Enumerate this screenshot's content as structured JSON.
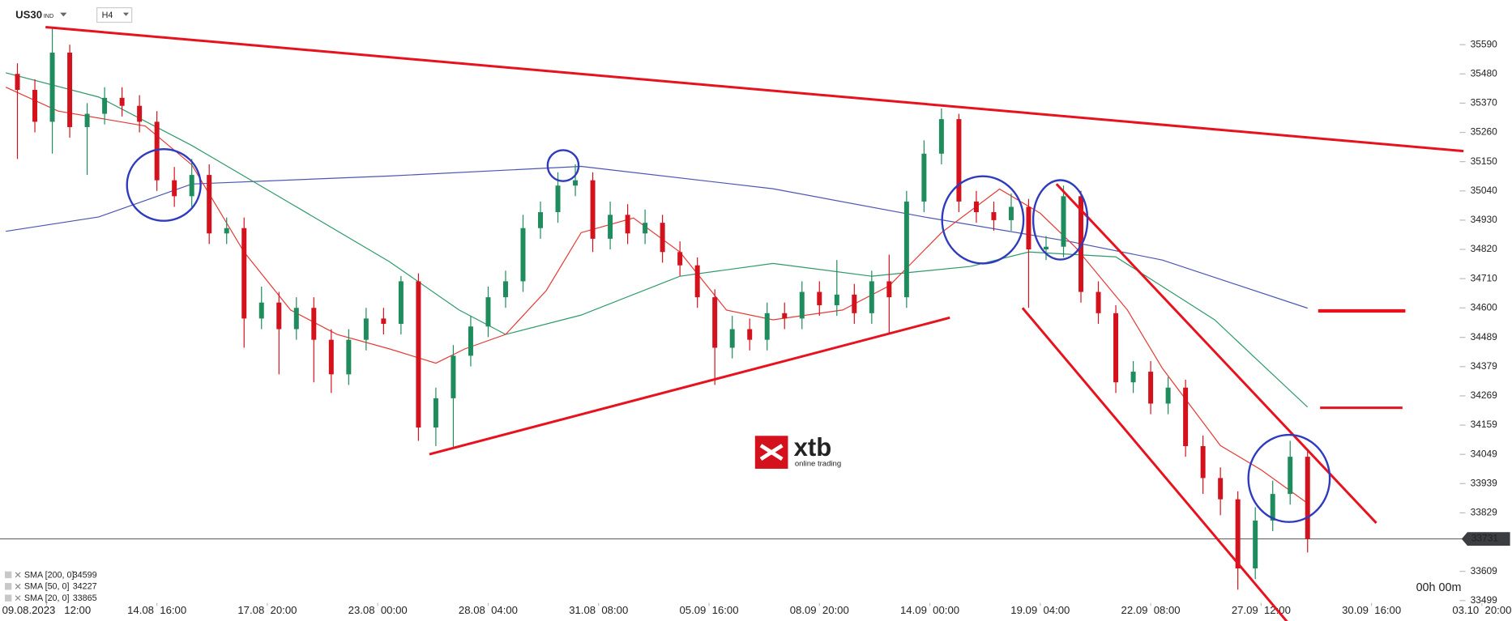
{
  "chart_data": {
    "type": "candlestick",
    "symbol": "US30",
    "symbol_tag": "IND",
    "timeframe": "H4",
    "x": [
      2,
      5,
      8,
      11,
      14,
      17,
      20,
      23,
      26,
      29,
      32,
      35,
      38,
      41,
      44,
      47,
      50,
      53,
      56,
      59,
      62,
      65,
      68,
      71,
      74,
      77,
      80,
      83,
      86,
      89,
      92,
      95,
      98,
      101,
      104,
      107,
      110,
      113,
      116,
      119,
      122,
      125,
      128,
      131,
      134,
      137,
      140,
      143,
      146,
      149,
      152,
      155,
      158,
      161,
      164,
      167,
      170,
      173,
      176,
      179,
      182,
      185,
      188,
      191,
      194,
      197,
      200,
      203,
      206,
      209,
      212,
      215,
      218,
      221,
      224
    ],
    "open": [
      35480,
      35420,
      35300,
      35560,
      35280,
      35330,
      35390,
      35360,
      35300,
      35080,
      35020,
      35100,
      34880,
      34900,
      34560,
      34620,
      34520,
      34600,
      34480,
      34350,
      34480,
      34560,
      34540,
      34700,
      34150,
      34260,
      34420,
      34530,
      34640,
      34700,
      34900,
      34960,
      35060,
      35080,
      34860,
      34950,
      34880,
      34920,
      34810,
      34760,
      34640,
      34450,
      34520,
      34480,
      34580,
      34560,
      34660,
      34610,
      34650,
      34580,
      34700,
      34640,
      35000,
      35180,
      35310,
      35000,
      34960,
      34930,
      34980,
      34820,
      34830,
      35020,
      34660,
      34580,
      34320,
      34360,
      34240,
      34300,
      34080,
      33960,
      33880,
      33620,
      33800,
      33900,
      34040
    ],
    "high": [
      35520,
      35460,
      35650,
      35590,
      35370,
      35430,
      35430,
      35400,
      35340,
      35130,
      35160,
      35140,
      34940,
      34940,
      34680,
      34660,
      34640,
      34640,
      34520,
      34520,
      34600,
      34600,
      34720,
      34730,
      34300,
      34460,
      34570,
      34680,
      34740,
      34950,
      35000,
      35110,
      35140,
      35110,
      35000,
      34990,
      34970,
      34950,
      34850,
      34790,
      34670,
      34570,
      34560,
      34620,
      34620,
      34700,
      34700,
      34780,
      34690,
      34740,
      34800,
      35040,
      35230,
      35350,
      35330,
      35040,
      35000,
      35030,
      35010,
      34870,
      35060,
      35040,
      34700,
      34610,
      34400,
      34400,
      34340,
      34330,
      34120,
      34000,
      33910,
      33850,
      33950,
      34100,
      34060
    ],
    "low": [
      35160,
      35260,
      35180,
      35240,
      35100,
      35290,
      35320,
      35260,
      35040,
      34980,
      34980,
      34840,
      34840,
      34450,
      34520,
      34350,
      34480,
      34320,
      34280,
      34310,
      34440,
      34500,
      34500,
      34100,
      34080,
      34070,
      34380,
      34490,
      34600,
      34660,
      34860,
      34920,
      35020,
      34810,
      34820,
      34840,
      34840,
      34770,
      34720,
      34600,
      34310,
      34410,
      34440,
      34440,
      34520,
      34520,
      34570,
      34570,
      34540,
      34540,
      34500,
      34600,
      34960,
      35140,
      34960,
      34920,
      34890,
      34890,
      34600,
      34780,
      34790,
      34620,
      34540,
      34280,
      34280,
      34200,
      34200,
      34040,
      33900,
      33820,
      33540,
      33580,
      33760,
      33860,
      33680
    ],
    "close": [
      35420,
      35300,
      35560,
      35280,
      35330,
      35390,
      35360,
      35300,
      35080,
      35020,
      35100,
      34880,
      34900,
      34560,
      34620,
      34520,
      34600,
      34480,
      34350,
      34480,
      34560,
      34540,
      34700,
      34150,
      34260,
      34420,
      34530,
      34640,
      34700,
      34900,
      34960,
      35060,
      35080,
      34860,
      34950,
      34880,
      34920,
      34810,
      34760,
      34640,
      34450,
      34520,
      34480,
      34580,
      34560,
      34660,
      34610,
      34650,
      34580,
      34700,
      34640,
      35000,
      35180,
      35310,
      35000,
      34960,
      34930,
      34980,
      34820,
      34830,
      35020,
      34660,
      34580,
      34320,
      34360,
      34240,
      34300,
      34080,
      33960,
      33880,
      33620,
      33800,
      33900,
      34040,
      33731
    ],
    "up_color": "#1e8c5c",
    "down_color": "#d3121d",
    "series": [
      {
        "name": "SMA [200, 0]",
        "color": "#4b56b4",
        "x": [
          0,
          16,
          32,
          66,
          99,
          132,
          158,
          183,
          199,
          224
        ],
        "values": [
          34888,
          34942,
          35066,
          35096,
          35132,
          35048,
          34942,
          34850,
          34780,
          34599
        ]
      },
      {
        "name": "SMA [50, 0]",
        "color": "#2e9a6a",
        "x": [
          0,
          16,
          32,
          49,
          66,
          78,
          86,
          99,
          116,
          132,
          149,
          166,
          176,
          191,
          208,
          216,
          224
        ],
        "values": [
          35484,
          35393,
          35211,
          34993,
          34774,
          34592,
          34500,
          34573,
          34719,
          34767,
          34719,
          34756,
          34810,
          34792,
          34555,
          34391,
          34227
        ]
      },
      {
        "name": "SMA [20, 0]",
        "color": "#e53935",
        "x": [
          0,
          9,
          24,
          32,
          41,
          49,
          57,
          66,
          74,
          79,
          86,
          93,
          99,
          108,
          116,
          124,
          132,
          144,
          152,
          161,
          171,
          178,
          184,
          193,
          199,
          209,
          216,
          224
        ],
        "values": [
          35430,
          35340,
          35284,
          35138,
          34810,
          34592,
          34500,
          34446,
          34392,
          34446,
          34500,
          34665,
          34883,
          34938,
          34810,
          34592,
          34555,
          34592,
          34683,
          34883,
          35047,
          34956,
          34829,
          34592,
          34373,
          34082,
          33991,
          33865
        ]
      }
    ],
    "xlim": [
      -1,
      250
    ],
    "ylim": [
      33490,
      35758
    ],
    "xticks": [
      {
        "value": 7,
        "label": "09.08.2023   12:00"
      },
      {
        "value": 26,
        "label": "14.08  16:00"
      },
      {
        "value": 45,
        "label": "17.08  20:00"
      },
      {
        "value": 64,
        "label": "23.08  00:00"
      },
      {
        "value": 83,
        "label": "28.08  04:00"
      },
      {
        "value": 102,
        "label": "31.08  08:00"
      },
      {
        "value": 121,
        "label": "05.09  16:00"
      },
      {
        "value": 140,
        "label": "08.09  20:00"
      },
      {
        "value": 159,
        "label": "14.09  00:00"
      },
      {
        "value": 178,
        "label": "19.09  04:00"
      },
      {
        "value": 197,
        "label": "22.09  08:00"
      },
      {
        "value": 216,
        "label": "27.09  12:00"
      },
      {
        "value": 235,
        "label": "30.09  16:00"
      },
      {
        "value": 254,
        "label": "03.10  20:00"
      }
    ],
    "yticks": [
      35590,
      35480,
      35370,
      35260,
      35150,
      35040,
      34930,
      34820,
      34710,
      34600,
      34489,
      34379,
      34269,
      34159,
      34049,
      33939,
      33829,
      33609,
      33499
    ],
    "last_price": 33731,
    "countdown": "00h 00m",
    "logo": "xtb",
    "logo_tagline": "online trading"
  }
}
